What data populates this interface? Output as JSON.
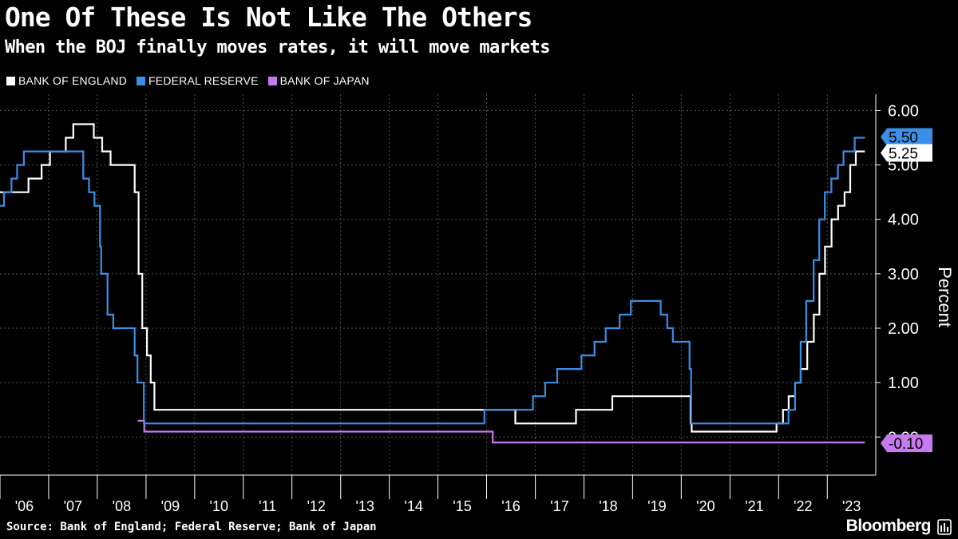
{
  "title": "One Of These Is Not Like The Others",
  "subtitle": "When the BOJ finally moves rates, it will move markets",
  "source": "Source: Bank of England; Federal Reserve; Bank of Japan",
  "brand": "Bloomberg",
  "brand_icon": "bloomberg-terminal-icon",
  "legend": [
    {
      "label": "BANK OF ENGLAND",
      "color": "#ffffff"
    },
    {
      "label": "FEDERAL RESERVE",
      "color": "#3a8fe8"
    },
    {
      "label": "BANK OF JAPAN",
      "color": "#c57af0"
    }
  ],
  "chart_data": {
    "type": "line",
    "step": true,
    "ylabel": "Percent",
    "x_axis": "date",
    "x_range": [
      "2006-01-01",
      "2023-12-31"
    ],
    "xticks": [
      "'06",
      "'07",
      "'08",
      "'09",
      "'10",
      "'11",
      "'12",
      "'13",
      "'14",
      "'15",
      "'16",
      "'17",
      "'18",
      "'19",
      "'20",
      "'21",
      "'22",
      "'23"
    ],
    "ylim": [
      -0.7,
      6.3
    ],
    "yticks": [
      "6.00",
      "5.00",
      "4.00",
      "3.00",
      "2.00",
      "1.00",
      "0.00"
    ],
    "ytick_values": [
      6,
      5,
      4,
      3,
      2,
      1,
      0
    ],
    "grid": true,
    "legend_position": "top-left",
    "axis_position": "right",
    "end_labels": [
      {
        "series": "FEDERAL RESERVE",
        "text": "5.50",
        "value": 5.5
      },
      {
        "series": "BANK OF ENGLAND",
        "text": "5.25",
        "value": 5.25
      },
      {
        "series": "BANK OF JAPAN",
        "text": "-0.10",
        "value": -0.1
      }
    ],
    "series": [
      {
        "name": "BANK OF ENGLAND",
        "color": "#ffffff",
        "points": [
          [
            "2006-01-01",
            4.5
          ],
          [
            "2006-08-03",
            4.75
          ],
          [
            "2006-11-09",
            5.0
          ],
          [
            "2007-01-11",
            5.25
          ],
          [
            "2007-05-10",
            5.5
          ],
          [
            "2007-07-05",
            5.75
          ],
          [
            "2007-12-06",
            5.5
          ],
          [
            "2008-02-07",
            5.25
          ],
          [
            "2008-04-10",
            5.0
          ],
          [
            "2008-10-08",
            4.5
          ],
          [
            "2008-11-06",
            3.0
          ],
          [
            "2008-12-04",
            2.0
          ],
          [
            "2009-01-08",
            1.5
          ],
          [
            "2009-02-05",
            1.0
          ],
          [
            "2009-03-05",
            0.5
          ],
          [
            "2016-08-04",
            0.25
          ],
          [
            "2017-11-02",
            0.5
          ],
          [
            "2018-08-02",
            0.75
          ],
          [
            "2020-03-11",
            0.25
          ],
          [
            "2020-03-19",
            0.1
          ],
          [
            "2021-12-16",
            0.25
          ],
          [
            "2022-02-03",
            0.5
          ],
          [
            "2022-03-17",
            0.75
          ],
          [
            "2022-05-05",
            1.0
          ],
          [
            "2022-06-16",
            1.25
          ],
          [
            "2022-08-04",
            1.75
          ],
          [
            "2022-09-22",
            2.25
          ],
          [
            "2022-11-03",
            3.0
          ],
          [
            "2022-12-15",
            3.5
          ],
          [
            "2023-02-02",
            4.0
          ],
          [
            "2023-03-23",
            4.25
          ],
          [
            "2023-05-11",
            4.5
          ],
          [
            "2023-06-22",
            5.0
          ],
          [
            "2023-08-03",
            5.25
          ],
          [
            "2023-10-10",
            5.25
          ]
        ]
      },
      {
        "name": "FEDERAL RESERVE",
        "color": "#3a8fe8",
        "points": [
          [
            "2006-01-01",
            4.25
          ],
          [
            "2006-01-31",
            4.5
          ],
          [
            "2006-03-28",
            4.75
          ],
          [
            "2006-05-10",
            5.0
          ],
          [
            "2006-06-29",
            5.25
          ],
          [
            "2007-09-18",
            4.75
          ],
          [
            "2007-10-31",
            4.5
          ],
          [
            "2007-12-11",
            4.25
          ],
          [
            "2008-01-22",
            3.5
          ],
          [
            "2008-01-30",
            3.0
          ],
          [
            "2008-03-18",
            2.25
          ],
          [
            "2008-04-30",
            2.0
          ],
          [
            "2008-10-08",
            1.5
          ],
          [
            "2008-10-29",
            1.0
          ],
          [
            "2008-12-16",
            0.25
          ],
          [
            "2015-12-16",
            0.5
          ],
          [
            "2016-12-14",
            0.75
          ],
          [
            "2017-03-15",
            1.0
          ],
          [
            "2017-06-14",
            1.25
          ],
          [
            "2017-12-13",
            1.5
          ],
          [
            "2018-03-21",
            1.75
          ],
          [
            "2018-06-13",
            2.0
          ],
          [
            "2018-09-26",
            2.25
          ],
          [
            "2018-12-19",
            2.5
          ],
          [
            "2019-07-31",
            2.25
          ],
          [
            "2019-09-18",
            2.0
          ],
          [
            "2019-10-30",
            1.75
          ],
          [
            "2020-03-03",
            1.25
          ],
          [
            "2020-03-15",
            0.25
          ],
          [
            "2022-03-16",
            0.5
          ],
          [
            "2022-05-04",
            1.0
          ],
          [
            "2022-06-15",
            1.75
          ],
          [
            "2022-07-27",
            2.5
          ],
          [
            "2022-09-21",
            3.25
          ],
          [
            "2022-11-02",
            4.0
          ],
          [
            "2022-12-14",
            4.5
          ],
          [
            "2023-02-01",
            4.75
          ],
          [
            "2023-03-22",
            5.0
          ],
          [
            "2023-05-03",
            5.25
          ],
          [
            "2023-07-26",
            5.5
          ],
          [
            "2023-10-10",
            5.5
          ]
        ]
      },
      {
        "name": "BANK OF JAPAN",
        "color": "#c57af0",
        "points": [
          [
            "2008-10-31",
            0.3
          ],
          [
            "2008-12-19",
            0.1
          ],
          [
            "2016-02-16",
            -0.1
          ],
          [
            "2023-10-10",
            -0.1
          ]
        ]
      }
    ]
  }
}
